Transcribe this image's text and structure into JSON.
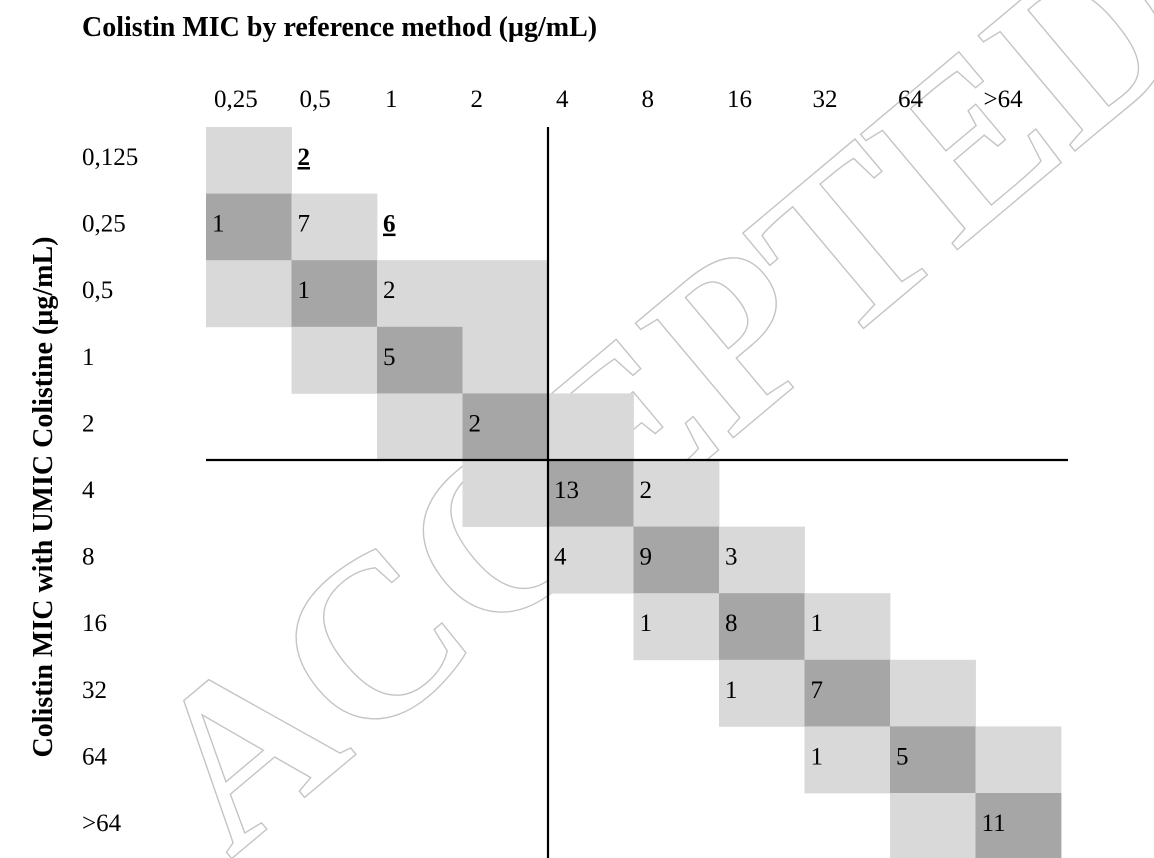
{
  "chart_data": {
    "type": "heatmap",
    "title": "Colistin MIC by reference method (µg/mL)",
    "xlabel": "Colistin MIC by reference method (µg/mL)",
    "ylabel": "Colistin MIC with UMIC Colistine (µg/mL)",
    "x_categories": [
      "0,25",
      "0,5",
      "1",
      "2",
      "4",
      "8",
      "16",
      "32",
      "64",
      ">64"
    ],
    "y_categories": [
      "0,125",
      "0,25",
      "0,5",
      "1",
      "2",
      "4",
      "8",
      "16",
      "32",
      "64",
      ">64"
    ],
    "breakpoint": {
      "x_after_category": "2",
      "y_after_category": "2"
    },
    "cells": [
      {
        "row": "0,125",
        "col": "0,25",
        "shade": "light",
        "value": ""
      },
      {
        "row": "0,125",
        "col": "0,5",
        "shade": "none",
        "value": "2",
        "emphasis": true
      },
      {
        "row": "0,25",
        "col": "0,25",
        "shade": "dark",
        "value": "1"
      },
      {
        "row": "0,25",
        "col": "0,5",
        "shade": "light",
        "value": "7"
      },
      {
        "row": "0,25",
        "col": "1",
        "shade": "none",
        "value": "6",
        "emphasis": true
      },
      {
        "row": "0,5",
        "col": "0,25",
        "shade": "light",
        "value": ""
      },
      {
        "row": "0,5",
        "col": "0,5",
        "shade": "dark",
        "value": "1"
      },
      {
        "row": "0,5",
        "col": "1",
        "shade": "light",
        "value": "2"
      },
      {
        "row": "0,5",
        "col": "2",
        "shade": "light",
        "value": ""
      },
      {
        "row": "1",
        "col": "0,5",
        "shade": "light",
        "value": ""
      },
      {
        "row": "1",
        "col": "1",
        "shade": "dark",
        "value": "5"
      },
      {
        "row": "1",
        "col": "2",
        "shade": "light",
        "value": ""
      },
      {
        "row": "2",
        "col": "1",
        "shade": "light",
        "value": ""
      },
      {
        "row": "2",
        "col": "2",
        "shade": "dark",
        "value": "2"
      },
      {
        "row": "2",
        "col": "4",
        "shade": "light",
        "value": ""
      },
      {
        "row": "4",
        "col": "2",
        "shade": "light",
        "value": ""
      },
      {
        "row": "4",
        "col": "4",
        "shade": "dark",
        "value": "13"
      },
      {
        "row": "4",
        "col": "8",
        "shade": "light",
        "value": "2"
      },
      {
        "row": "8",
        "col": "4",
        "shade": "light",
        "value": "4"
      },
      {
        "row": "8",
        "col": "8",
        "shade": "dark",
        "value": "9"
      },
      {
        "row": "8",
        "col": "16",
        "shade": "light",
        "value": "3"
      },
      {
        "row": "16",
        "col": "8",
        "shade": "light",
        "value": "1"
      },
      {
        "row": "16",
        "col": "16",
        "shade": "dark",
        "value": "8"
      },
      {
        "row": "16",
        "col": "32",
        "shade": "light",
        "value": "1"
      },
      {
        "row": "32",
        "col": "16",
        "shade": "light",
        "value": "1"
      },
      {
        "row": "32",
        "col": "32",
        "shade": "dark",
        "value": "7"
      },
      {
        "row": "32",
        "col": "64",
        "shade": "light",
        "value": ""
      },
      {
        "row": "64",
        "col": "32",
        "shade": "light",
        "value": "1"
      },
      {
        "row": "64",
        "col": "64",
        "shade": "dark",
        "value": "5"
      },
      {
        "row": "64",
        "col": ">64",
        "shade": "light",
        "value": ""
      },
      {
        "row": ">64",
        "col": "64",
        "shade": "light",
        "value": ""
      },
      {
        "row": ">64",
        "col": ">64",
        "shade": "dark",
        "value": "11"
      }
    ],
    "colors": {
      "light": "#d9d9d9",
      "dark": "#a6a6a6",
      "line": "#000000"
    }
  },
  "watermark": "ACCEPTED MANUSCRIPT"
}
